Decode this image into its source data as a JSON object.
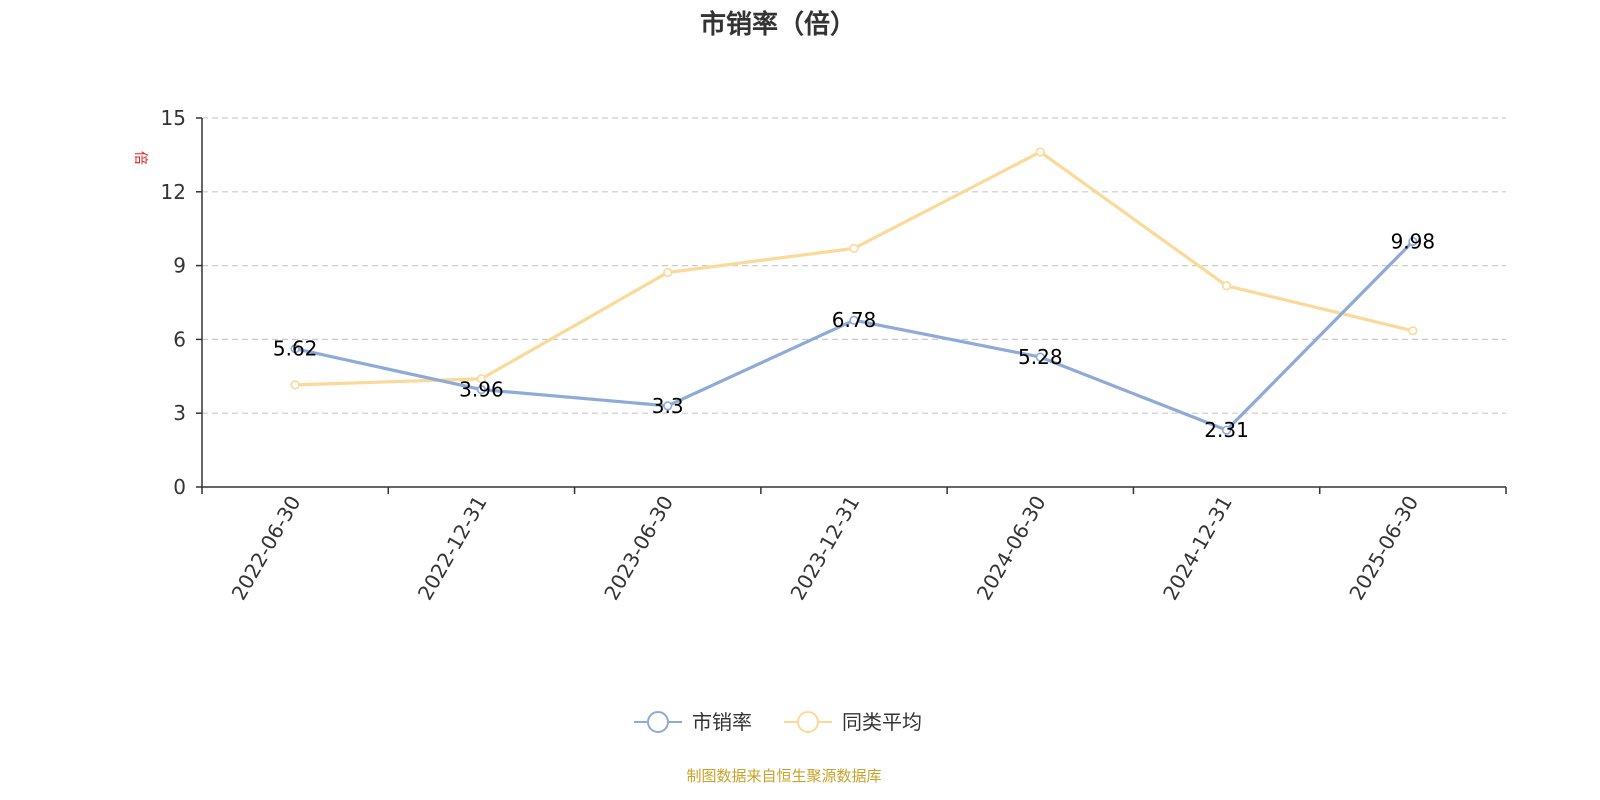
{
  "chart_data": {
    "type": "line",
    "title": "市销率（倍）",
    "y_unit": "倍",
    "categories": [
      "2022-06-30",
      "2022-12-31",
      "2023-06-30",
      "2023-12-31",
      "2024-06-30",
      "2024-12-31",
      "2025-06-30"
    ],
    "series": [
      {
        "name": "市销率",
        "values": [
          5.62,
          3.96,
          3.3,
          6.78,
          5.28,
          2.31,
          9.98
        ],
        "labels": [
          "5.62",
          "3.96",
          "3.3",
          "6.78",
          "5.28",
          "2.31",
          "9.98"
        ],
        "color": "#8eaad6"
      },
      {
        "name": "同类平均",
        "values": [
          4.15,
          4.4,
          8.72,
          9.7,
          13.62,
          8.18,
          6.35
        ],
        "color": "#fbd999"
      }
    ],
    "ylim": [
      0,
      15
    ],
    "yticks": [
      "0",
      "3",
      "6",
      "9",
      "12",
      "15"
    ],
    "ytick_values": [
      0,
      3,
      6,
      9,
      12,
      15
    ],
    "grid": true,
    "legend_position": "bottom-center"
  },
  "source": {
    "text": "制图数据来自恒生聚源数据库",
    "color": "#c9a227"
  },
  "colors": {
    "axis": "#333333",
    "grid": "#cccccc",
    "unit": "#e02020"
  }
}
